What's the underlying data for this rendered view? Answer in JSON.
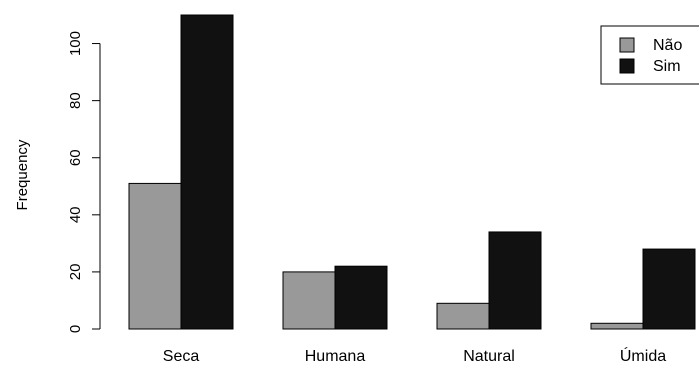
{
  "chart_data": {
    "type": "bar",
    "categories": [
      "Seca",
      "Humana",
      "Natural",
      "Úmida"
    ],
    "series": [
      {
        "name": "Não",
        "values": [
          51,
          20,
          9,
          2
        ],
        "color": "#999999"
      },
      {
        "name": "Sim",
        "values": [
          110,
          22,
          34,
          28
        ],
        "color": "#111111"
      }
    ],
    "xlabel": "",
    "ylabel": "Frequency",
    "ylim": [
      0,
      110
    ],
    "yticks": [
      0,
      20,
      40,
      60,
      80,
      100
    ],
    "grid": false,
    "legend_position": "top-right"
  }
}
